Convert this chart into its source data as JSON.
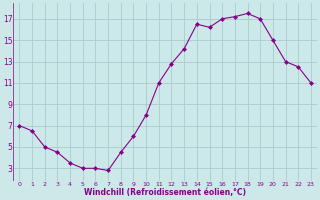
{
  "x": [
    0,
    1,
    2,
    3,
    4,
    5,
    6,
    7,
    8,
    9,
    10,
    11,
    12,
    13,
    14,
    15,
    16,
    17,
    18,
    19,
    20,
    21,
    22,
    23
  ],
  "y": [
    7,
    6.5,
    5,
    4.5,
    3.5,
    3,
    3,
    2.8,
    4.5,
    6,
    8,
    11,
    12.8,
    14.2,
    16.5,
    16.2,
    17,
    17.2,
    17.5,
    17,
    15,
    13,
    12.5,
    11
  ],
  "line_color": "#880088",
  "marker": "D",
  "marker_size": 2.0,
  "bg_color": "#cce8e8",
  "grid_color": "#aacccc",
  "xlabel": "Windchill (Refroidissement éolien,°C)",
  "xlabel_color": "#880088",
  "tick_color": "#880088",
  "ytick_labels": [
    "3",
    "5",
    "7",
    "9",
    "11",
    "13",
    "15",
    "17"
  ],
  "ytick_values": [
    3,
    5,
    7,
    9,
    11,
    13,
    15,
    17
  ],
  "xticks": [
    0,
    1,
    2,
    3,
    4,
    5,
    6,
    7,
    8,
    9,
    10,
    11,
    12,
    13,
    14,
    15,
    16,
    17,
    18,
    19,
    20,
    21,
    22,
    23
  ],
  "ylim": [
    1.8,
    18.5
  ],
  "xlim": [
    -0.5,
    23.5
  ]
}
